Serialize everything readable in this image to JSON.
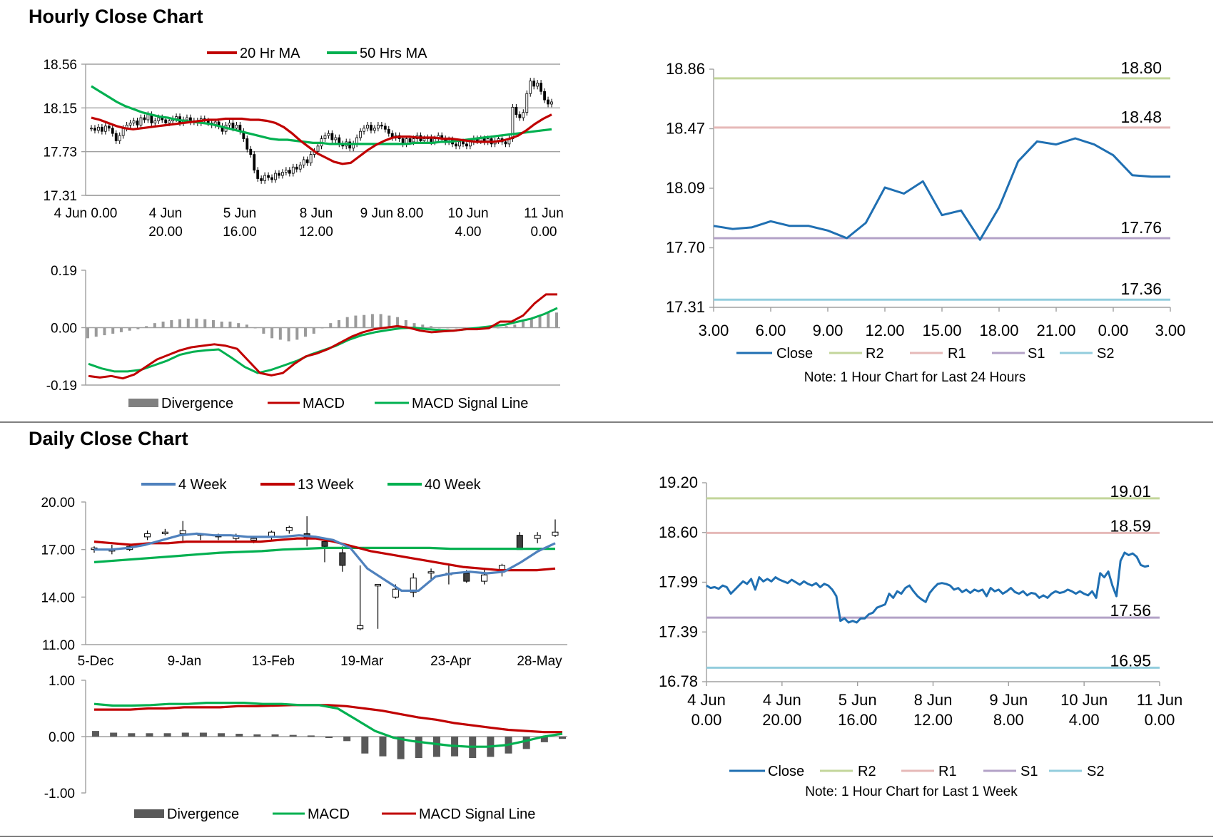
{
  "titles": {
    "hourly": "Hourly Close Chart",
    "daily": "Daily Close Chart"
  },
  "colors": {
    "ma_red": "#c00000",
    "ma_green": "#00b050",
    "blue_ma": "#4f81bd",
    "close_blue": "#1f6fb2",
    "r2": "#c3d69b",
    "r1": "#e6b9b8",
    "s1": "#b3a2c7",
    "s2": "#93cddd",
    "divergence_grey": "#808080",
    "divergence_dark": "#595959",
    "candle_dark": "#404040"
  },
  "chart_data": [
    {
      "id": "hourly_price",
      "type": "candlestick",
      "title": "",
      "ylim": [
        17.31,
        18.56
      ],
      "yticks": [
        "18.56",
        "18.15",
        "17.73",
        "17.31"
      ],
      "xticks": [
        [
          "4 Jun 0.00",
          ""
        ],
        [
          "4 Jun",
          "20.00"
        ],
        [
          "5 Jun",
          "16.00"
        ],
        [
          "8 Jun",
          "12.00"
        ],
        [
          "9 Jun 8.00",
          ""
        ],
        [
          "10 Jun",
          "4.00"
        ],
        [
          "11 Jun",
          "0.00"
        ]
      ],
      "legend": [
        "20 Hr MA",
        "50 Hrs MA"
      ],
      "close": [
        17.95,
        17.93,
        17.96,
        17.92,
        17.97,
        17.95,
        17.9,
        17.83,
        17.88,
        17.95,
        17.98,
        18.0,
        18.02,
        17.98,
        18.05,
        18.03,
        18.08,
        18.0,
        18.02,
        18.05,
        18.03,
        18.0,
        18.02,
        18.04,
        18.06,
        18.0,
        18.03,
        18.05,
        18.01,
        18.02,
        18.0,
        18.04,
        18.02,
        18.0,
        17.98,
        18.01,
        17.97,
        17.92,
        17.98,
        18.0,
        17.95,
        17.98,
        17.92,
        17.85,
        17.75,
        17.7,
        17.55,
        17.47,
        17.45,
        17.5,
        17.48,
        17.46,
        17.52,
        17.5,
        17.53,
        17.55,
        17.52,
        17.58,
        17.56,
        17.6,
        17.65,
        17.62,
        17.7,
        17.73,
        17.78,
        17.85,
        17.88,
        17.9,
        17.84,
        17.86,
        17.8,
        17.78,
        17.82,
        17.76,
        17.8,
        17.86,
        17.92,
        17.95,
        17.98,
        17.93,
        17.95,
        17.98,
        17.97,
        17.94,
        17.9,
        17.86,
        17.88,
        17.85,
        17.8,
        17.85,
        17.82,
        17.85,
        17.88,
        17.83,
        17.85,
        17.86,
        17.82,
        17.85,
        17.88,
        17.85,
        17.82,
        17.84,
        17.8,
        17.78,
        17.82,
        17.8,
        17.78,
        17.82,
        17.85,
        17.83,
        17.85,
        17.82,
        17.85,
        17.8,
        17.83,
        17.85,
        17.82,
        17.8,
        17.85,
        18.15,
        18.08,
        18.05,
        18.1,
        18.28,
        18.4,
        18.35,
        18.38,
        18.3,
        18.22,
        18.18,
        18.2
      ],
      "ma20": [
        18.05,
        18.03,
        18.0,
        17.97,
        17.95,
        17.94,
        17.95,
        17.96,
        17.97,
        17.98,
        17.99,
        18.0,
        18.01,
        18.02,
        18.03,
        18.03,
        18.04,
        18.04,
        18.04,
        18.03,
        18.03,
        18.02,
        18.0,
        17.96,
        17.9,
        17.83,
        17.77,
        17.71,
        17.67,
        17.63,
        17.61,
        17.62,
        17.68,
        17.74,
        17.79,
        17.83,
        17.86,
        17.87,
        17.87,
        17.86,
        17.86,
        17.86,
        17.85,
        17.85,
        17.84,
        17.83,
        17.82,
        17.82,
        17.82,
        17.83,
        17.85,
        17.88,
        17.93,
        17.99,
        18.04,
        18.08
      ],
      "ma50": [
        18.35,
        18.3,
        18.25,
        18.2,
        18.16,
        18.13,
        18.1,
        18.08,
        18.06,
        18.05,
        18.03,
        18.02,
        18.01,
        18.0,
        17.99,
        17.97,
        17.95,
        17.93,
        17.91,
        17.89,
        17.87,
        17.85,
        17.84,
        17.84,
        17.83,
        17.82,
        17.81,
        17.81,
        17.8,
        17.8,
        17.8,
        17.8,
        17.8,
        17.8,
        17.8,
        17.8,
        17.8,
        17.8,
        17.81,
        17.81,
        17.81,
        17.82,
        17.82,
        17.83,
        17.84,
        17.85,
        17.86,
        17.87,
        17.88,
        17.89,
        17.9,
        17.91,
        17.92,
        17.93,
        17.94
      ]
    },
    {
      "id": "hourly_macd",
      "type": "line",
      "ylim": [
        -0.19,
        0.19
      ],
      "yticks": [
        "0.19",
        "0.00",
        "-0.19"
      ],
      "legend": [
        "Divergence",
        "MACD",
        "MACD Signal Line"
      ],
      "macd": [
        -0.16,
        -0.165,
        -0.16,
        -0.168,
        -0.155,
        -0.13,
        -0.105,
        -0.09,
        -0.075,
        -0.065,
        -0.06,
        -0.055,
        -0.06,
        -0.07,
        -0.11,
        -0.15,
        -0.158,
        -0.15,
        -0.12,
        -0.095,
        -0.085,
        -0.07,
        -0.05,
        -0.03,
        -0.015,
        -0.005,
        0.0,
        0.005,
        0.0,
        -0.01,
        -0.015,
        -0.012,
        -0.01,
        -0.005,
        -0.005,
        -0.002,
        0.02,
        0.02,
        0.04,
        0.08,
        0.11,
        0.11
      ],
      "signal": [
        -0.12,
        -0.135,
        -0.145,
        -0.145,
        -0.14,
        -0.125,
        -0.11,
        -0.09,
        -0.08,
        -0.075,
        -0.072,
        -0.1,
        -0.13,
        -0.15,
        -0.14,
        -0.125,
        -0.11,
        -0.09,
        -0.075,
        -0.06,
        -0.04,
        -0.025,
        -0.015,
        -0.008,
        -0.002,
        0.0,
        -0.005,
        -0.008,
        -0.01,
        -0.005,
        0.0,
        0.005,
        0.01,
        0.02,
        0.03,
        0.045,
        0.065
      ],
      "divergence": [
        -0.035,
        -0.03,
        -0.025,
        -0.02,
        -0.015,
        -0.01,
        -0.005,
        0.005,
        0.015,
        0.02,
        0.025,
        0.028,
        0.03,
        0.03,
        0.028,
        0.025,
        0.02,
        0.02,
        0.015,
        0.01,
        0.0,
        -0.02,
        -0.035,
        -0.04,
        -0.045,
        -0.04,
        -0.03,
        -0.02,
        0.0,
        0.015,
        0.025,
        0.035,
        0.04,
        0.042,
        0.045,
        0.045,
        0.04,
        0.035,
        0.025,
        0.015,
        0.01,
        0.005,
        0.0,
        0.0,
        0.0,
        0.0,
        -0.005,
        -0.005,
        0.0,
        0.0,
        0.005,
        0.01,
        0.02,
        0.03,
        0.04,
        0.05,
        0.05
      ]
    },
    {
      "id": "hourly_levels",
      "type": "line",
      "ylim": [
        17.31,
        18.86
      ],
      "yticks": [
        "18.86",
        "18.47",
        "18.09",
        "17.70",
        "17.31"
      ],
      "xticks": [
        "3.00",
        "6.00",
        "9.00",
        "12.00",
        "15.00",
        "18.00",
        "21.00",
        "0.00",
        "3.00"
      ],
      "levels": {
        "R2": "18.80",
        "R1": "18.48",
        "S1": "17.76",
        "S2": "17.36"
      },
      "level_values": {
        "R2": 18.8,
        "R1": 18.48,
        "S1": 17.76,
        "S2": 17.36
      },
      "close": [
        17.84,
        17.82,
        17.83,
        17.87,
        17.84,
        17.84,
        17.81,
        17.76,
        17.86,
        18.09,
        18.05,
        18.13,
        17.91,
        17.94,
        17.75,
        17.96,
        18.26,
        18.39,
        18.37,
        18.41,
        18.37,
        18.3,
        18.17,
        18.16,
        18.16
      ],
      "legend": [
        "Close",
        "R2",
        "R1",
        "S1",
        "S2"
      ],
      "note": "Note: 1 Hour Chart for Last 24 Hours"
    },
    {
      "id": "daily_price",
      "type": "candlestick",
      "ylim": [
        11.0,
        20.0
      ],
      "yticks": [
        "20.00",
        "17.00",
        "14.00",
        "11.00"
      ],
      "xticks": [
        "5-Dec",
        "9-Jan",
        "13-Feb",
        "19-Mar",
        "23-Apr",
        "28-May"
      ],
      "legend": [
        "4 Week",
        "13 Week",
        "40 Week"
      ],
      "candles": [
        [
          17.0,
          17.1,
          16.8,
          17.2
        ],
        [
          16.9,
          17.0,
          16.7,
          17.3
        ],
        [
          17.0,
          17.2,
          16.9,
          17.3
        ],
        [
          17.8,
          18.0,
          17.6,
          18.2
        ],
        [
          18.0,
          18.1,
          17.9,
          18.3
        ],
        [
          18.0,
          18.2,
          17.5,
          18.8
        ],
        [
          18.0,
          17.9,
          17.6,
          18.0
        ],
        [
          17.9,
          17.8,
          17.6,
          18.0
        ],
        [
          17.7,
          17.9,
          17.5,
          18.0
        ],
        [
          17.6,
          17.7,
          17.4,
          17.8
        ],
        [
          17.8,
          18.1,
          17.6,
          18.2
        ],
        [
          18.2,
          18.4,
          18.0,
          18.5
        ],
        [
          18.0,
          17.7,
          17.2,
          19.1
        ],
        [
          17.5,
          17.2,
          16.2,
          17.5
        ],
        [
          16.8,
          16.0,
          15.6,
          17.2
        ],
        [
          12.0,
          12.2,
          11.9,
          16.0
        ],
        [
          14.7,
          14.8,
          12.0,
          14.8
        ],
        [
          14.0,
          14.5,
          13.9,
          14.8
        ],
        [
          14.3,
          15.2,
          14.0,
          15.5
        ],
        [
          15.6,
          15.6,
          15.0,
          15.8
        ],
        [
          15.5,
          15.5,
          14.8,
          16.0
        ],
        [
          15.5,
          15.0,
          14.9,
          15.7
        ],
        [
          15.0,
          15.4,
          14.8,
          15.8
        ],
        [
          15.7,
          16.0,
          15.3,
          16.1
        ],
        [
          17.9,
          17.0,
          17.0,
          18.1
        ],
        [
          17.7,
          17.9,
          17.4,
          18.1
        ],
        [
          17.9,
          18.1,
          17.8,
          18.9
        ]
      ],
      "ma4": [
        17.0,
        17.0,
        17.1,
        17.3,
        17.6,
        17.9,
        18.0,
        17.9,
        17.9,
        17.8,
        17.8,
        17.8,
        17.9,
        17.8,
        17.6,
        17.1,
        15.8,
        15.1,
        14.4,
        14.4,
        15.3,
        15.5,
        15.6,
        15.5,
        15.6,
        16.2,
        16.9,
        17.4
      ],
      "ma13": [
        17.5,
        17.4,
        17.3,
        17.4,
        17.4,
        17.5,
        17.5,
        17.5,
        17.5,
        17.5,
        17.6,
        17.7,
        17.7,
        17.5,
        17.2,
        16.9,
        16.7,
        16.5,
        16.3,
        16.1,
        15.9,
        15.8,
        15.7,
        15.7,
        15.7,
        15.8
      ],
      "ma40": [
        16.2,
        16.3,
        16.4,
        16.5,
        16.6,
        16.7,
        16.8,
        16.85,
        16.9,
        17.0,
        17.05,
        17.1,
        17.1,
        17.1,
        17.1,
        17.1,
        17.1,
        17.05,
        17.05,
        17.05,
        17.05,
        17.05,
        17.05
      ],
      "note": ""
    },
    {
      "id": "daily_macd",
      "type": "bar",
      "ylim": [
        -1.0,
        1.0
      ],
      "yticks": [
        "1.00",
        "0.00",
        "-1.00"
      ],
      "legend": [
        "Divergence",
        "MACD",
        "MACD Signal Line"
      ],
      "macd": [
        0.58,
        0.55,
        0.55,
        0.56,
        0.58,
        0.58,
        0.6,
        0.6,
        0.6,
        0.58,
        0.58,
        0.56,
        0.56,
        0.5,
        0.3,
        0.1,
        -0.02,
        -0.08,
        -0.12,
        -0.16,
        -0.18,
        -0.18,
        -0.15,
        -0.08,
        0.0,
        0.05
      ],
      "signal": [
        0.48,
        0.48,
        0.48,
        0.5,
        0.5,
        0.52,
        0.52,
        0.52,
        0.54,
        0.54,
        0.55,
        0.56,
        0.56,
        0.56,
        0.54,
        0.5,
        0.46,
        0.4,
        0.34,
        0.3,
        0.24,
        0.2,
        0.16,
        0.12,
        0.1,
        0.08,
        0.08
      ],
      "divergence": [
        0.1,
        0.07,
        0.06,
        0.06,
        0.06,
        0.07,
        0.07,
        0.06,
        0.05,
        0.04,
        0.04,
        0.03,
        0.02,
        0.0,
        -0.08,
        -0.3,
        -0.35,
        -0.4,
        -0.38,
        -0.36,
        -0.35,
        -0.38,
        -0.36,
        -0.3,
        -0.22,
        -0.1,
        -0.04
      ]
    },
    {
      "id": "daily_levels",
      "type": "line",
      "ylim": [
        16.78,
        19.2
      ],
      "yticks": [
        "19.20",
        "18.60",
        "17.99",
        "17.39",
        "16.78"
      ],
      "xticks": [
        [
          "4 Jun",
          "0.00"
        ],
        [
          "4 Jun",
          "20.00"
        ],
        [
          "5 Jun",
          "16.00"
        ],
        [
          "8 Jun",
          "12.00"
        ],
        [
          "9 Jun",
          "8.00"
        ],
        [
          "10 Jun",
          "4.00"
        ],
        [
          "11 Jun",
          "0.00"
        ]
      ],
      "levels": {
        "R2": "19.01",
        "R1": "18.59",
        "S1": "17.56",
        "S2": "16.95"
      },
      "level_values": {
        "R2": 19.01,
        "R1": 18.59,
        "S1": 17.56,
        "S2": 16.95
      },
      "close": [
        17.95,
        17.92,
        17.93,
        17.91,
        17.95,
        17.93,
        17.85,
        17.9,
        17.95,
        18.0,
        17.97,
        18.03,
        17.9,
        18.05,
        18.0,
        18.03,
        18.0,
        18.05,
        18.02,
        18.0,
        17.98,
        18.02,
        17.99,
        17.96,
        18.0,
        17.97,
        17.95,
        17.98,
        17.93,
        17.97,
        17.95,
        17.9,
        17.82,
        17.52,
        17.55,
        17.5,
        17.52,
        17.5,
        17.55,
        17.55,
        17.6,
        17.62,
        17.68,
        17.7,
        17.72,
        17.85,
        17.8,
        17.88,
        17.85,
        17.92,
        17.95,
        17.88,
        17.82,
        17.78,
        17.75,
        17.86,
        17.92,
        17.97,
        17.98,
        17.97,
        17.95,
        17.9,
        17.92,
        17.87,
        17.9,
        17.86,
        17.9,
        17.88,
        17.9,
        17.82,
        17.92,
        17.88,
        17.9,
        17.85,
        17.88,
        17.92,
        17.87,
        17.85,
        17.88,
        17.83,
        17.86,
        17.85,
        17.8,
        17.83,
        17.8,
        17.85,
        17.88,
        17.86,
        17.87,
        17.9,
        17.88,
        17.85,
        17.88,
        17.85,
        17.83,
        17.88,
        17.8,
        18.1,
        18.05,
        18.12,
        17.95,
        17.82,
        18.25,
        18.35,
        18.32,
        18.34,
        18.3,
        18.2,
        18.18,
        18.19
      ],
      "legend": [
        "Close",
        "R2",
        "R1",
        "S1",
        "S2"
      ],
      "note": "Note: 1 Hour Chart for Last 1 Week"
    }
  ]
}
